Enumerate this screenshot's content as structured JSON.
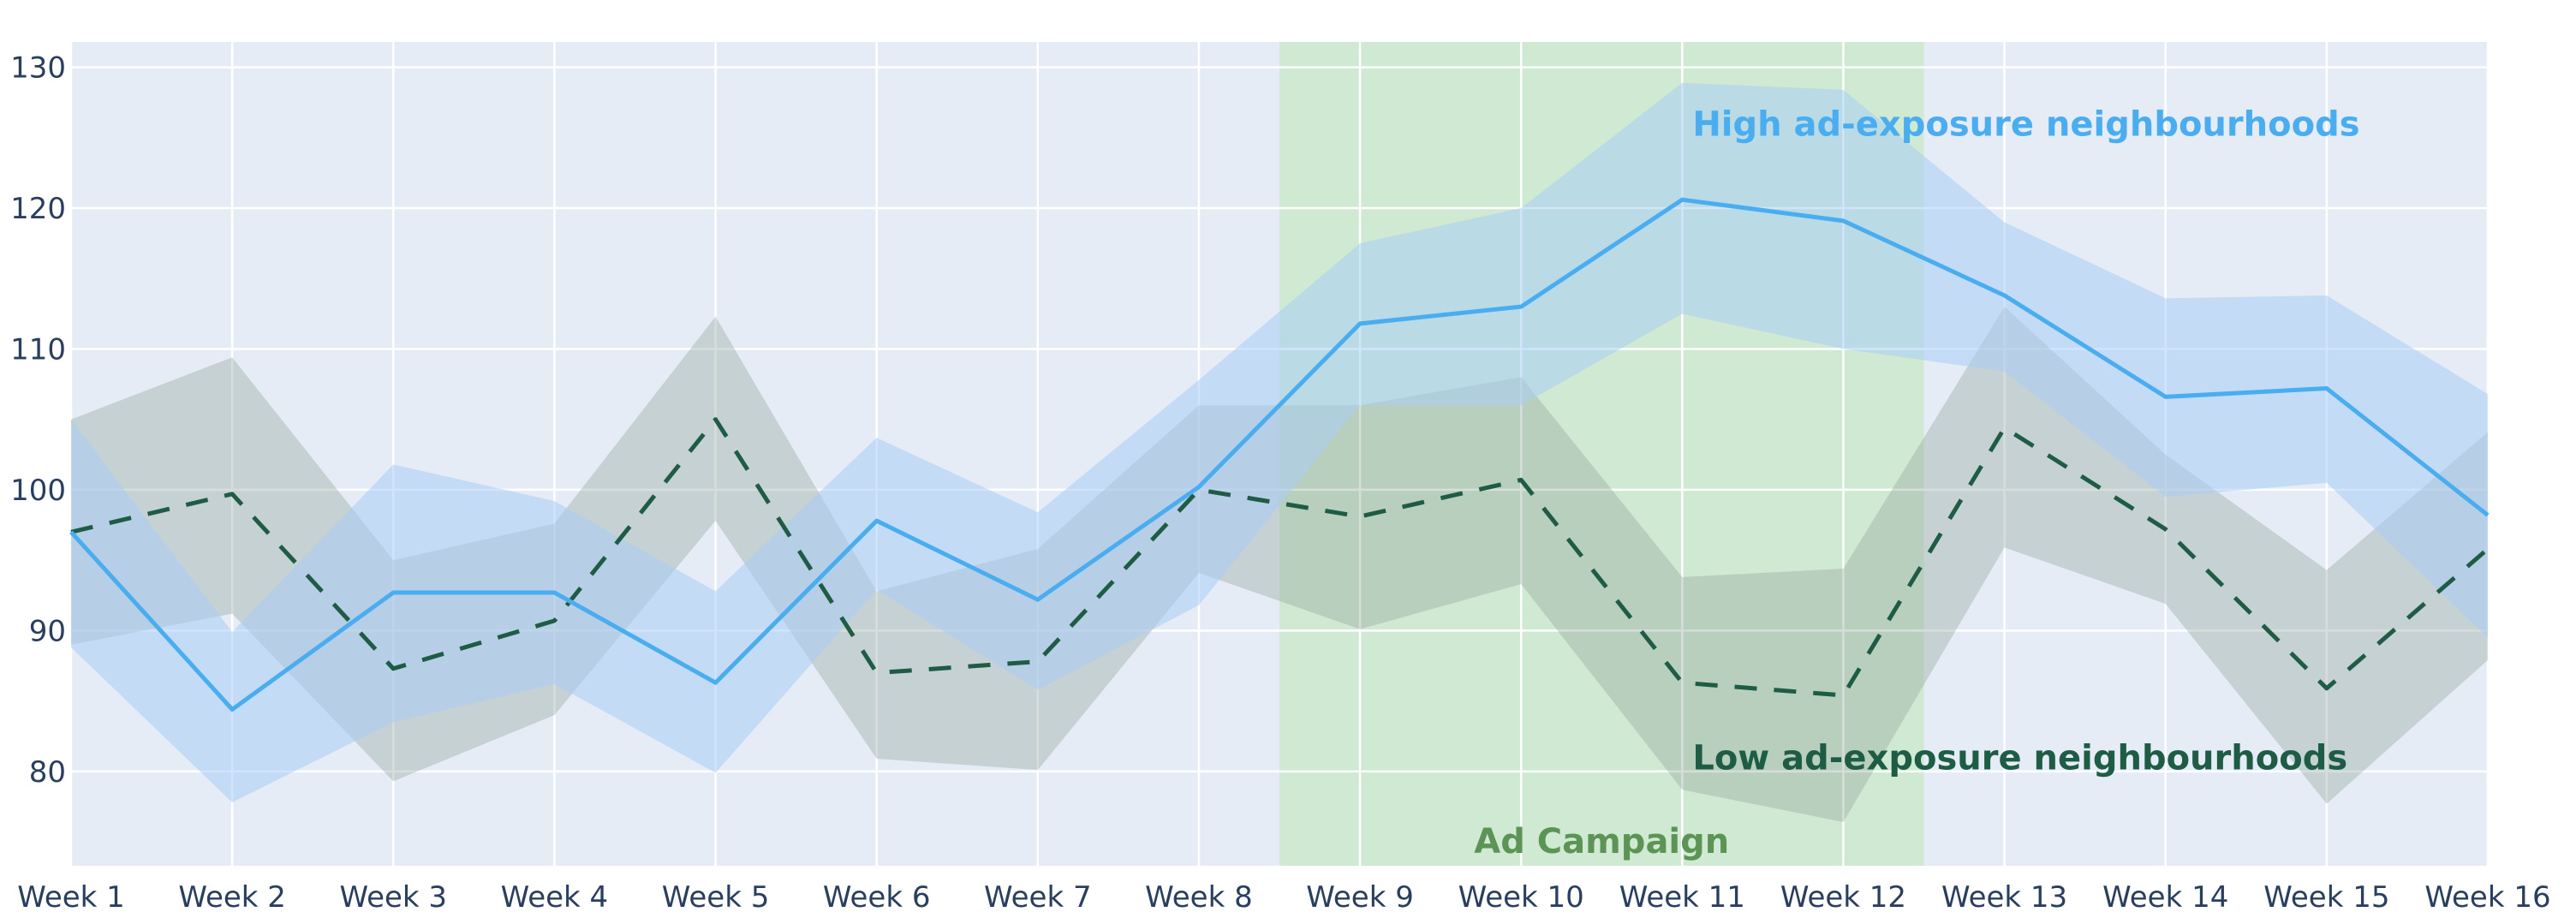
{
  "chart_data": {
    "type": "line",
    "title": "",
    "xlabel": "",
    "ylabel": "",
    "categories": [
      "Week 1",
      "Week 2",
      "Week 3",
      "Week 4",
      "Week 5",
      "Week 6",
      "Week 7",
      "Week 8",
      "Week 9",
      "Week 10",
      "Week 11",
      "Week 12",
      "Week 13",
      "Week 14",
      "Week 15",
      "Week 16"
    ],
    "ylim": [
      73.3,
      131.8
    ],
    "yticks": [
      80,
      90,
      100,
      110,
      120,
      130
    ],
    "grid": true,
    "legend": "inline annotations",
    "series": [
      {
        "name": "Low ad-exposure neighbourhoods",
        "style": "dashed",
        "color": "#1e5c45",
        "band_color": "rgba(140,160,150,0.35)",
        "values": [
          97.0,
          99.7,
          87.3,
          90.7,
          105.0,
          87.0,
          87.8,
          100.0,
          98.1,
          100.7,
          86.3,
          85.4,
          104.4,
          97.2,
          85.9,
          95.8
        ],
        "upper": [
          105.0,
          109.4,
          95.0,
          97.6,
          112.3,
          92.8,
          95.8,
          106.0,
          106.0,
          108.0,
          93.8,
          94.4,
          113.0,
          102.5,
          94.3,
          104.1
        ],
        "lower": [
          89.0,
          91.2,
          79.3,
          84.0,
          97.8,
          80.9,
          80.1,
          94.1,
          90.1,
          93.3,
          78.7,
          76.4,
          95.9,
          91.9,
          77.7,
          87.9
        ]
      },
      {
        "name": "High ad-exposure neighbourhoods",
        "style": "solid",
        "color": "#4aadf0",
        "band_color": "rgba(170,205,245,0.55)",
        "values": [
          97.0,
          84.4,
          92.7,
          92.7,
          86.3,
          97.8,
          92.2,
          100.2,
          111.8,
          113.0,
          120.6,
          119.1,
          113.8,
          106.6,
          107.2,
          98.2
        ],
        "upper": [
          105.0,
          89.9,
          101.8,
          99.2,
          92.8,
          103.7,
          98.4,
          107.8,
          117.5,
          120.0,
          128.9,
          128.4,
          119.0,
          113.6,
          113.8,
          106.8
        ],
        "lower": [
          88.8,
          77.8,
          83.5,
          86.2,
          79.9,
          92.9,
          85.8,
          91.8,
          106.0,
          106.0,
          112.5,
          110.0,
          108.4,
          99.5,
          100.5,
          89.5
        ]
      }
    ],
    "shaded_region": {
      "label": "Ad Campaign",
      "from": 8.5,
      "to": 12.5,
      "color": "#cfe9d3",
      "text_color": "#5b9455"
    },
    "annotations": [
      {
        "text": "High ad-exposure neighbourhoods",
        "color": "#4aadf0",
        "x": 11,
        "y": 126
      },
      {
        "text": "Low ad-exposure neighbourhoods",
        "color": "#1e5c45",
        "x": 11,
        "y": 81
      },
      {
        "text": "Ad Campaign",
        "color": "#5b9455",
        "x": 10.5,
        "y": 75
      }
    ],
    "plot_bg": "#e5ecf6"
  }
}
